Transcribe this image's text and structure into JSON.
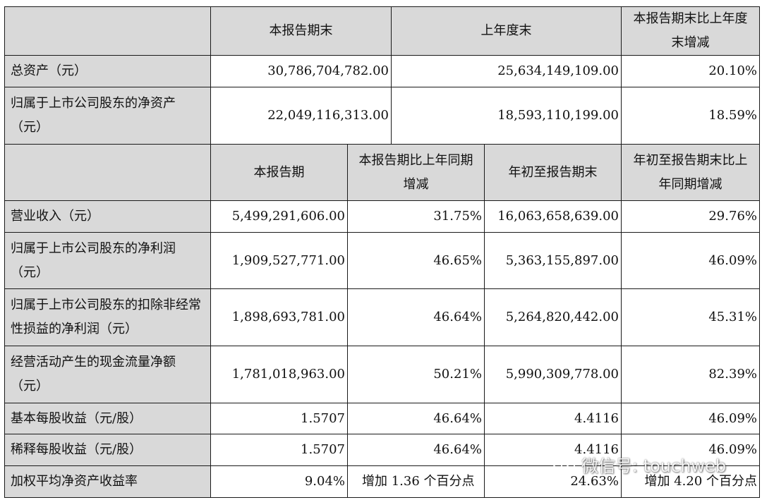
{
  "top_header": {
    "blank": "",
    "col1": "本报告期末",
    "col2": "上年度末",
    "col3": "本报告期末比上年度末增减"
  },
  "top_rows": [
    {
      "label": "总资产（元）",
      "values": [
        "30,786,704,782.00",
        "25,634,149,109.00",
        "20.10%"
      ]
    },
    {
      "label": "归属于上市公司股东的净资产（元）",
      "values": [
        "22,049,116,313.00",
        "18,593,110,199.00",
        "18.59%"
      ]
    }
  ],
  "bottom_header": {
    "blank": "",
    "col1": "本报告期",
    "col2": "本报告期比上年同期增减",
    "col3": "年初至报告期末",
    "col4": "年初至报告期末比上年同期增减"
  },
  "bottom_rows": [
    {
      "label": "营业收入（元）",
      "values": [
        "5,499,291,606.00",
        "31.75%",
        "16,063,658,639.00",
        "29.76%"
      ]
    },
    {
      "label": "归属于上市公司股东的净利润（元）",
      "values": [
        "1,909,527,771.00",
        "46.65%",
        "5,363,155,897.00",
        "46.09%"
      ]
    },
    {
      "label": "归属于上市公司股东的扣除非经常性损益的净利润（元）",
      "values": [
        "1,898,693,781.00",
        "46.64%",
        "5,264,820,442.00",
        "45.31%"
      ]
    },
    {
      "label": "经营活动产生的现金流量净额（元）",
      "values": [
        "1,781,018,963.00",
        "50.21%",
        "5,990,309,778.00",
        "82.39%"
      ]
    },
    {
      "label": "基本每股收益（元/股）",
      "values": [
        "1.5707",
        "46.64%",
        "4.4116",
        "46.09%"
      ]
    },
    {
      "label": "稀释每股收益（元/股）",
      "values": [
        "1.5707",
        "46.64%",
        "4.4116",
        "46.09%"
      ]
    },
    {
      "label": "加权平均净资产收益率",
      "values": [
        "9.04%",
        "增加 1.36 个百分点",
        "24.63%",
        "增加 4.20 个百分点"
      ]
    }
  ],
  "watermark": {
    "text": "微信号: touchweb",
    "icon": "wechat-icon"
  }
}
